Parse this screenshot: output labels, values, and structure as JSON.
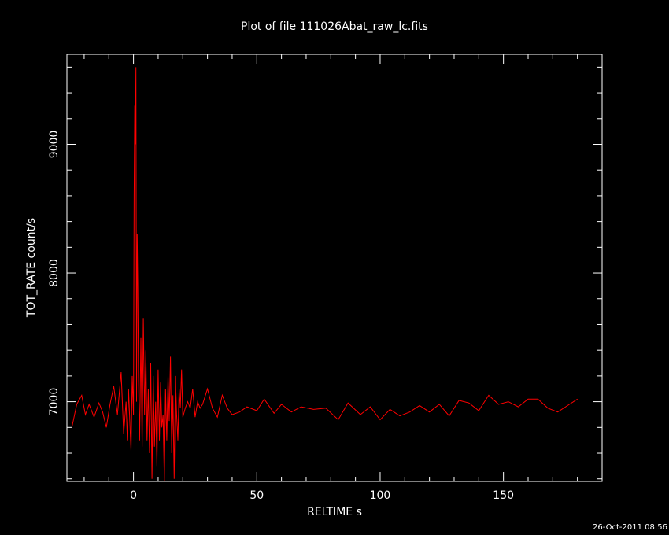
{
  "colors": {
    "background": "#000000",
    "axes": "#ffffff",
    "series": "#ff0000"
  },
  "footer": {
    "timestamp": "26-Oct-2011 08:56"
  },
  "chart_data": {
    "type": "line",
    "title": "Plot of file 111026Abat_raw_lc.fits",
    "xlabel": "RELTIME  s",
    "ylabel": "TOT_RATE  count/s",
    "xlim": [
      -27,
      190
    ],
    "ylim": [
      6380,
      9700
    ],
    "x_ticks": [
      0,
      50,
      100,
      150
    ],
    "y_ticks": [
      7000,
      8000,
      9000
    ],
    "grid": false,
    "legend": "none",
    "series": [
      {
        "x": [
          -25,
          -23,
          -21,
          -19.5,
          -18,
          -16,
          -14,
          -12.5,
          -11,
          -9.5,
          -8,
          -6.5,
          -5,
          -4,
          -3,
          -2.5,
          -2,
          -1.5,
          -1,
          -0.5,
          0,
          0.25,
          0.5,
          0.75,
          1,
          1.25,
          1.5,
          1.75,
          2,
          2.5,
          3,
          3.5,
          4,
          4.5,
          5,
          5.5,
          6,
          6.5,
          7,
          7.5,
          8,
          8.5,
          9,
          9.5,
          10,
          10.5,
          11,
          11.5,
          12,
          12.5,
          13,
          13.5,
          14,
          14.5,
          15,
          15.5,
          16,
          16.5,
          17,
          17.5,
          18,
          18.5,
          19,
          19.5,
          20,
          21,
          22,
          23,
          24,
          25,
          26,
          27,
          28,
          30,
          32,
          34,
          36,
          38,
          40,
          43,
          46,
          50,
          53,
          57,
          60,
          64,
          68,
          73,
          78,
          83,
          87,
          92,
          96,
          100,
          104,
          108,
          112,
          116,
          120,
          124,
          128,
          132,
          136,
          140,
          144,
          148,
          152,
          156,
          160,
          164,
          168,
          172,
          176,
          180
        ],
        "y": [
          6800,
          6980,
          7050,
          6900,
          6980,
          6880,
          6990,
          6920,
          6800,
          6980,
          7120,
          6900,
          7230,
          6750,
          7000,
          6700,
          7100,
          6850,
          6620,
          7200,
          6900,
          8600,
          9300,
          9000,
          9600,
          7000,
          8300,
          7900,
          7200,
          6700,
          7500,
          6650,
          7650,
          6900,
          7400,
          6700,
          7100,
          6600,
          7300,
          6400,
          7200,
          6650,
          7000,
          6500,
          7250,
          6700,
          7150,
          6800,
          6900,
          6380,
          7100,
          6700,
          7200,
          6850,
          7350,
          6600,
          7050,
          6400,
          7200,
          6900,
          6700,
          7100,
          6950,
          7250,
          6880,
          6950,
          7000,
          6950,
          7100,
          6880,
          7000,
          6950,
          6980,
          7100,
          6950,
          6880,
          7050,
          6950,
          6900,
          6920,
          6960,
          6930,
          7020,
          6910,
          6980,
          6920,
          6960,
          6940,
          6950,
          6860,
          6990,
          6900,
          6960,
          6860,
          6940,
          6890,
          6920,
          6970,
          6920,
          6980,
          6890,
          7010,
          6990,
          6930,
          7050,
          6980,
          7000,
          6960,
          7020,
          7020,
          6950,
          6920,
          6970,
          7020
        ]
      }
    ]
  }
}
